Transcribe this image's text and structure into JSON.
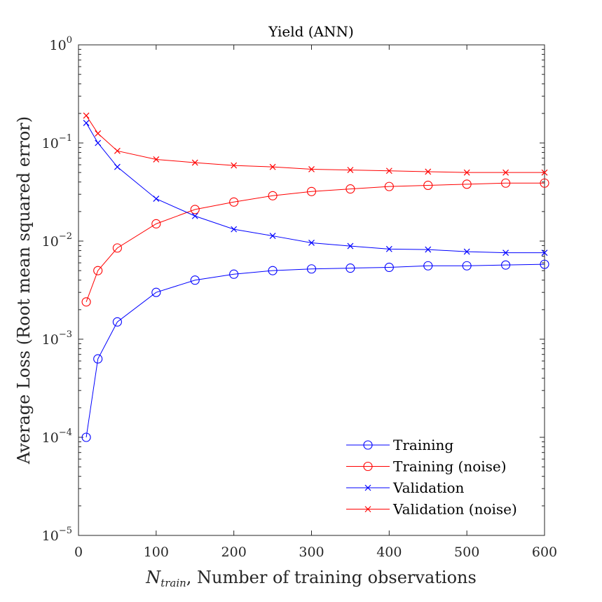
{
  "chart_data": {
    "type": "line",
    "title": "Yield (ANN)",
    "xlabel": {
      "var": "N",
      "sub": "train",
      "rest": ", Number of training observations"
    },
    "ylabel": "Average Loss (Root mean squared error)",
    "xlim": [
      0,
      600
    ],
    "ylim": [
      1e-05,
      1
    ],
    "y_scale": "log",
    "grid": false,
    "legend_position": "bottom-right",
    "x_ticks": [
      "0",
      "100",
      "200",
      "300",
      "400",
      "500",
      "600"
    ],
    "y_ticks": [
      {
        "base": "10",
        "exp": "0"
      },
      {
        "base": "10",
        "exp": "−1"
      },
      {
        "base": "10",
        "exp": "−2"
      },
      {
        "base": "10",
        "exp": "−3"
      },
      {
        "base": "10",
        "exp": "−4"
      },
      {
        "base": "10",
        "exp": "−5"
      }
    ],
    "x": [
      10,
      25,
      50,
      100,
      150,
      200,
      250,
      300,
      350,
      400,
      450,
      500,
      550,
      600
    ],
    "series": [
      {
        "name": "Training",
        "color": "#0000ff",
        "marker": "circle",
        "values": [
          0.0001,
          0.00063,
          0.0015,
          0.003,
          0.004,
          0.0046,
          0.005,
          0.0052,
          0.0053,
          0.0054,
          0.0056,
          0.0056,
          0.0057,
          0.0058
        ]
      },
      {
        "name": "Training (noise)",
        "color": "#ff0000",
        "marker": "circle",
        "values": [
          0.0024,
          0.005,
          0.0085,
          0.015,
          0.021,
          0.025,
          0.029,
          0.032,
          0.034,
          0.036,
          0.037,
          0.038,
          0.039,
          0.039
        ]
      },
      {
        "name": "Validation",
        "color": "#0000ff",
        "marker": "x",
        "values": [
          0.16,
          0.1,
          0.057,
          0.027,
          0.018,
          0.0132,
          0.0113,
          0.0096,
          0.0089,
          0.0083,
          0.0082,
          0.0078,
          0.0076,
          0.0076
        ]
      },
      {
        "name": "Validation (noise)",
        "color": "#ff0000",
        "marker": "x",
        "values": [
          0.19,
          0.125,
          0.083,
          0.068,
          0.063,
          0.059,
          0.057,
          0.054,
          0.053,
          0.052,
          0.051,
          0.05,
          0.05,
          0.05
        ]
      }
    ]
  }
}
